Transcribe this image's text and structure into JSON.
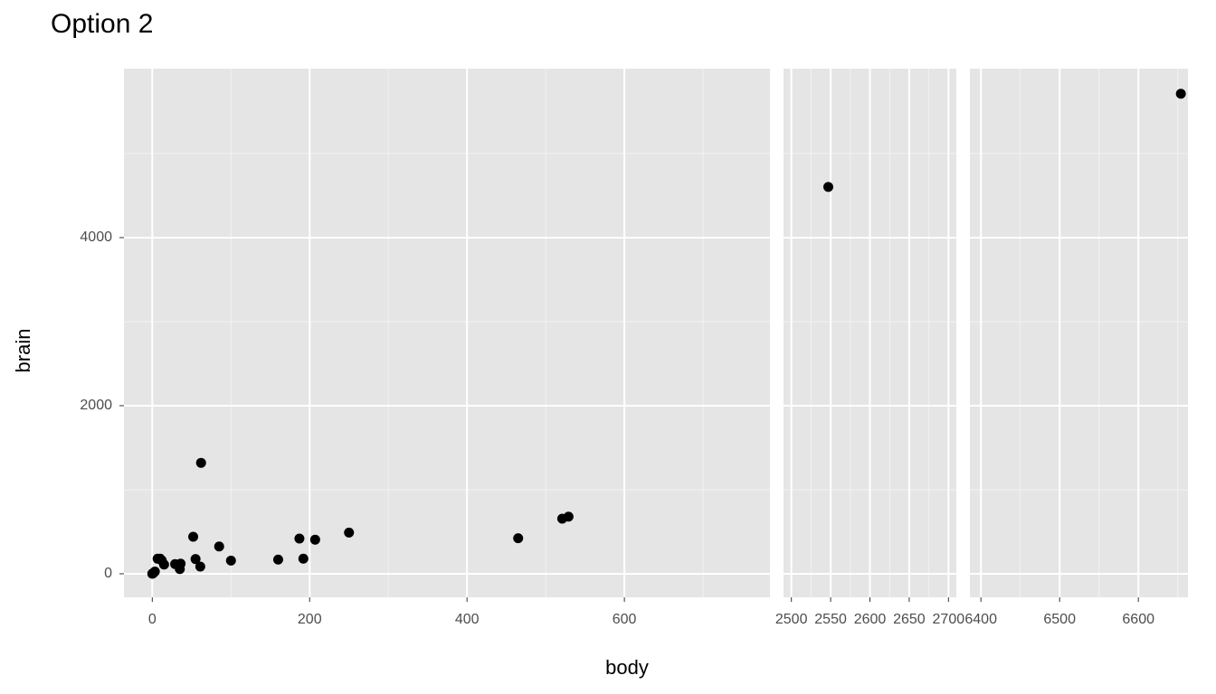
{
  "chart_data": {
    "type": "scatter",
    "title": "Option 2",
    "xlabel": "body",
    "ylabel": "brain",
    "color": "#000000",
    "grid": true,
    "ylim": [
      -280,
      6010
    ],
    "yticks": [
      0,
      2000,
      4000
    ],
    "panels": [
      {
        "xlim": [
          -36,
          785
        ],
        "xticks": [
          0,
          200,
          400,
          600
        ]
      },
      {
        "xlim": [
          2490,
          2710
        ],
        "xticks": [
          2500,
          2550,
          2600,
          2650,
          2700
        ]
      },
      {
        "xlim": [
          6386,
          6663
        ],
        "xticks": [
          6400,
          6500,
          6600
        ]
      }
    ],
    "x": [
      0.02,
      0.3,
      1.35,
      3.3,
      6.8,
      10,
      12,
      15,
      29,
      36,
      35,
      52,
      55,
      61,
      62,
      85,
      100,
      160,
      187,
      192,
      207,
      250,
      465,
      521,
      529,
      2547,
      6654
    ],
    "values": [
      0.4,
      2,
      8,
      26,
      179,
      180,
      160,
      110,
      115,
      120,
      56,
      440,
      175,
      86,
      1320,
      325,
      157,
      169,
      419,
      180,
      406,
      490,
      423,
      655,
      680,
      4603,
      5712
    ]
  }
}
